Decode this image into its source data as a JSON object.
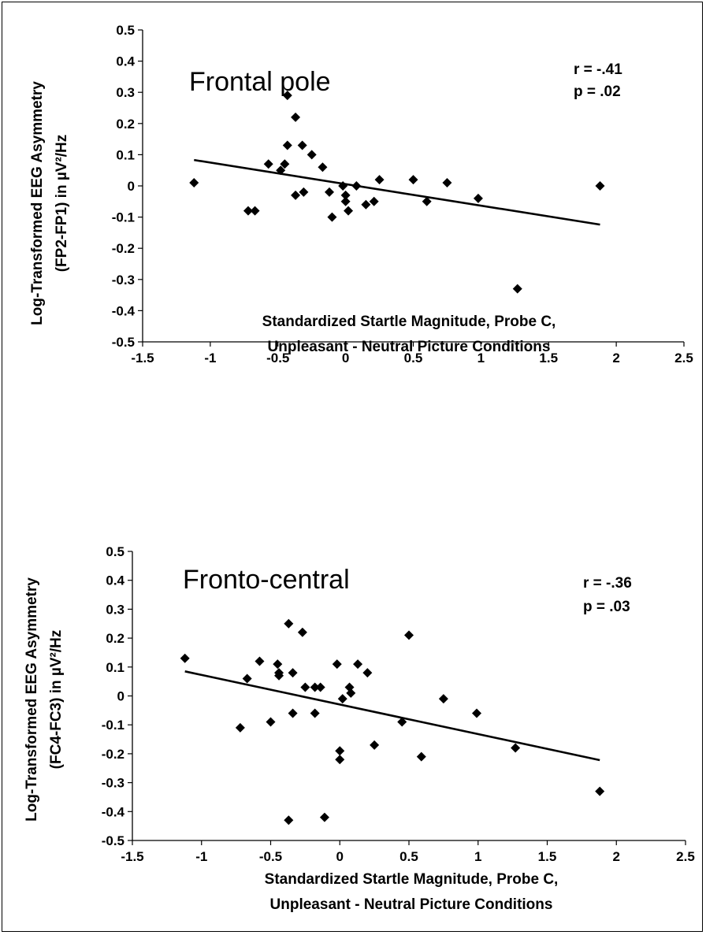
{
  "chart_data": [
    {
      "type": "scatter",
      "title": "Frontal pole",
      "annotations": [
        "r = -.41",
        "p = .02"
      ],
      "xlabel": [
        "Standardized Startle Magnitude, Probe C,",
        "Unpleasant - Neutral Picture Conditions"
      ],
      "ylabel": [
        "Log-Transformed EEG  Asymmetry",
        "(FP2-FP1) in µV²/Hz"
      ],
      "xlim": [
        -1.5,
        2.5
      ],
      "ylim": [
        -0.5,
        0.5
      ],
      "xticks": [
        "-1.5",
        "-1",
        "-0.5",
        "0",
        "0.5",
        "1",
        "1.5",
        "2",
        "2.5"
      ],
      "yticks": [
        "0.5",
        "0.4",
        "0.3",
        "0.2",
        "0.1",
        "0",
        "-0.1",
        "-0.2",
        "-0.3",
        "-0.4",
        "-0.5"
      ],
      "grid": false,
      "marker": "diamond",
      "trendline": {
        "x": [
          -1.12,
          1.88
        ],
        "y": [
          0.083,
          -0.124
        ]
      },
      "points": [
        [
          -1.12,
          0.01
        ],
        [
          -0.72,
          -0.08
        ],
        [
          -0.67,
          -0.08
        ],
        [
          -0.57,
          0.07
        ],
        [
          -0.48,
          0.05
        ],
        [
          -0.45,
          0.07
        ],
        [
          -0.43,
          0.29
        ],
        [
          -0.43,
          0.13
        ],
        [
          -0.37,
          0.22
        ],
        [
          -0.37,
          -0.03
        ],
        [
          -0.32,
          0.13
        ],
        [
          -0.31,
          -0.02
        ],
        [
          -0.25,
          0.1
        ],
        [
          -0.17,
          0.06
        ],
        [
          -0.12,
          -0.02
        ],
        [
          -0.1,
          -0.1
        ],
        [
          -0.02,
          0.0
        ],
        [
          0.0,
          -0.03
        ],
        [
          0.0,
          -0.05
        ],
        [
          0.02,
          -0.08
        ],
        [
          0.08,
          0.0
        ],
        [
          0.15,
          -0.06
        ],
        [
          0.21,
          -0.05
        ],
        [
          0.25,
          0.02
        ],
        [
          0.5,
          0.02
        ],
        [
          0.6,
          -0.05
        ],
        [
          0.75,
          0.01
        ],
        [
          0.98,
          -0.04
        ],
        [
          1.27,
          -0.33
        ],
        [
          1.88,
          0.0
        ]
      ]
    },
    {
      "type": "scatter",
      "title": "Fronto-central",
      "annotations": [
        "r = -.36",
        "p = .03"
      ],
      "xlabel": [
        "Standardized Startle Magnitude, Probe C,",
        "Unpleasant - Neutral Picture Conditions"
      ],
      "ylabel": [
        "Log-Transformed EEG Asymmetry",
        "(FC4-FC3) in µV²/Hz"
      ],
      "xlim": [
        -1.5,
        2.5
      ],
      "ylim": [
        -0.5,
        0.5
      ],
      "xticks": [
        "-1.5",
        "-1",
        "-0.5",
        "0",
        "0.5",
        "1",
        "1.5",
        "2",
        "2.5"
      ],
      "yticks": [
        "0.5",
        "0.4",
        "0.3",
        "0.2",
        "0.1",
        "0",
        "-0.1",
        "-0.2",
        "-0.3",
        "-0.4",
        "-0.5"
      ],
      "grid": false,
      "marker": "diamond",
      "trendline": {
        "x": [
          -1.12,
          1.88
        ],
        "y": [
          0.085,
          -0.222
        ]
      },
      "points": [
        [
          -1.12,
          0.13
        ],
        [
          -0.72,
          -0.11
        ],
        [
          -0.67,
          0.06
        ],
        [
          -0.58,
          0.12
        ],
        [
          -0.5,
          -0.09
        ],
        [
          -0.45,
          0.11
        ],
        [
          -0.44,
          0.08
        ],
        [
          -0.44,
          0.07
        ],
        [
          -0.37,
          0.25
        ],
        [
          -0.34,
          0.08
        ],
        [
          -0.34,
          -0.06
        ],
        [
          -0.37,
          -0.43
        ],
        [
          -0.27,
          0.22
        ],
        [
          -0.25,
          0.03
        ],
        [
          -0.18,
          0.03
        ],
        [
          -0.18,
          -0.06
        ],
        [
          -0.14,
          0.03
        ],
        [
          -0.11,
          -0.42
        ],
        [
          -0.02,
          0.11
        ],
        [
          0.0,
          -0.19
        ],
        [
          0.0,
          -0.22
        ],
        [
          0.02,
          -0.01
        ],
        [
          0.07,
          0.03
        ],
        [
          0.08,
          0.01
        ],
        [
          0.13,
          0.11
        ],
        [
          0.2,
          0.08
        ],
        [
          0.25,
          -0.17
        ],
        [
          0.45,
          -0.09
        ],
        [
          0.5,
          0.21
        ],
        [
          0.59,
          -0.21
        ],
        [
          0.75,
          -0.01
        ],
        [
          0.99,
          -0.06
        ],
        [
          1.27,
          -0.18
        ],
        [
          1.88,
          -0.33
        ]
      ]
    }
  ]
}
